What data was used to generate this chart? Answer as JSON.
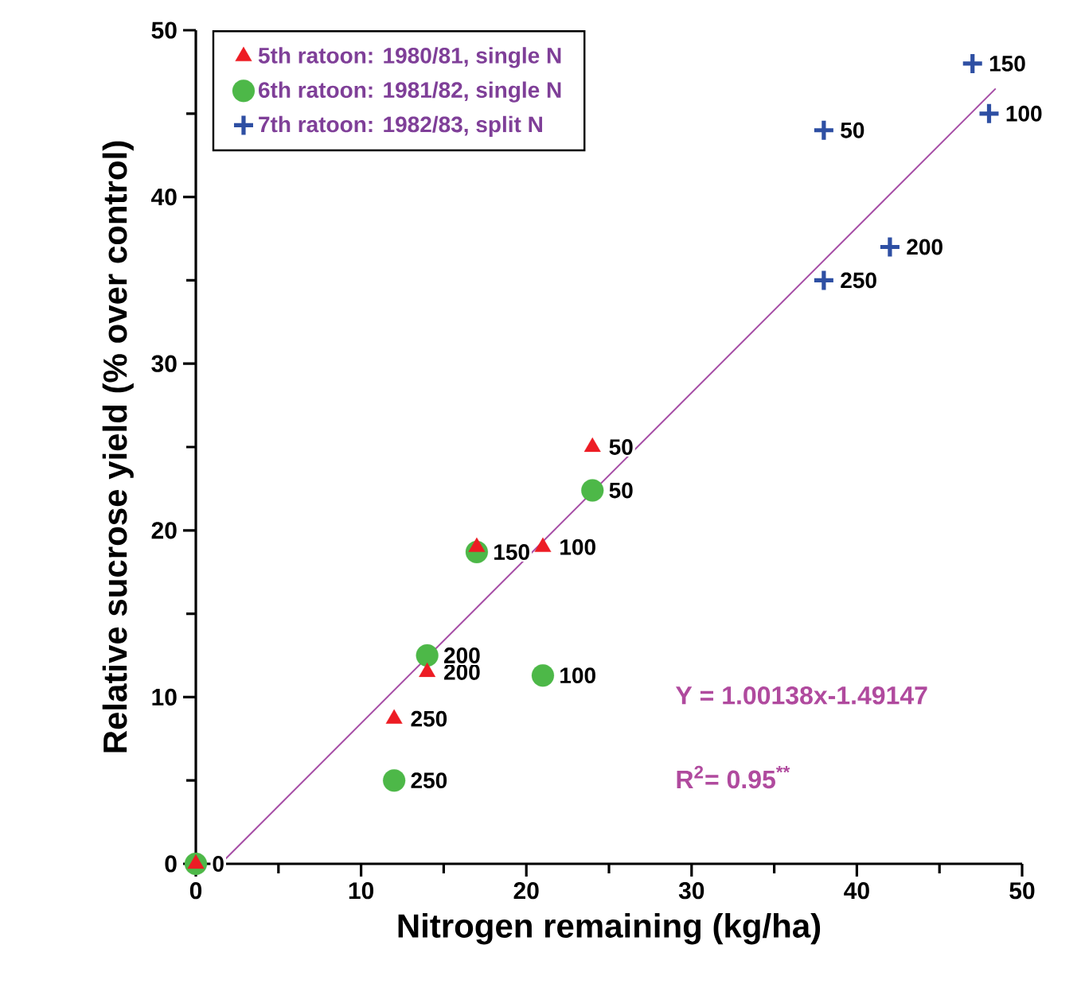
{
  "chart_data": {
    "type": "scatter",
    "xlabel": "Nitrogen remaining (kg/ha)",
    "ylabel": "Relative sucrose yield (% over control)",
    "xlim": [
      0,
      50
    ],
    "ylim": [
      0,
      50
    ],
    "xticks": [
      0,
      10,
      20,
      30,
      40,
      50
    ],
    "yticks": [
      0,
      10,
      20,
      30,
      40,
      50
    ],
    "grid": false,
    "legend": "top left",
    "series": [
      {
        "name": "5th ratoon: 1980/81, single N",
        "color": "#ed1c24",
        "marker": "triangle",
        "x": [
          0,
          24,
          21,
          17,
          14,
          12
        ],
        "values": [
          0,
          25,
          19,
          19,
          11.5,
          8.7
        ]
      },
      {
        "name": "6th ratoon: 1981/82, single N",
        "color": "#4db848",
        "marker": "circle",
        "x": [
          0,
          24,
          21,
          17,
          14,
          12
        ],
        "values": [
          0,
          22.4,
          11.3,
          18.7,
          12.5,
          5
        ]
      },
      {
        "name": "7th ratoon: 1982/83, split N",
        "color": "#2e4fa3",
        "marker": "cross",
        "x": [
          38,
          48,
          47,
          42,
          38
        ],
        "values": [
          44,
          45,
          48,
          37,
          35
        ]
      },
      {
        "type": "line",
        "color": "#a54ca5",
        "x": [
          1.5,
          48.4
        ],
        "values": [
          0,
          46.5
        ]
      }
    ],
    "annotations": [
      "Y = 1.00138x-1.49147",
      "R$^{2}$= 0.95$^{**}$",
      {
        "text": "0",
        "x": 0,
        "y": 0
      },
      {
        "text": "50",
        "x": 24,
        "y": 25
      },
      {
        "text": "100",
        "x": 21,
        "y": 19
      },
      {
        "text": "150",
        "x": 17,
        "y": 18.7
      },
      {
        "text": "200",
        "x": 14,
        "y": 11.5
      },
      {
        "text": "250",
        "x": 12,
        "y": 8.7
      },
      {
        "text": "50",
        "x": 24,
        "y": 22.4
      },
      {
        "text": "100",
        "x": 21,
        "y": 11.3
      },
      {
        "text": "200",
        "x": 14,
        "y": 12.5
      },
      {
        "text": "250",
        "x": 12,
        "y": 5
      },
      {
        "text": "50",
        "x": 38,
        "y": 44
      },
      {
        "text": "100",
        "x": 48,
        "y": 45
      },
      {
        "text": "150",
        "x": 47,
        "y": 48
      },
      {
        "text": "200",
        "x": 42,
        "y": 37
      },
      {
        "text": "250",
        "x": 38,
        "y": 35
      }
    ]
  }
}
